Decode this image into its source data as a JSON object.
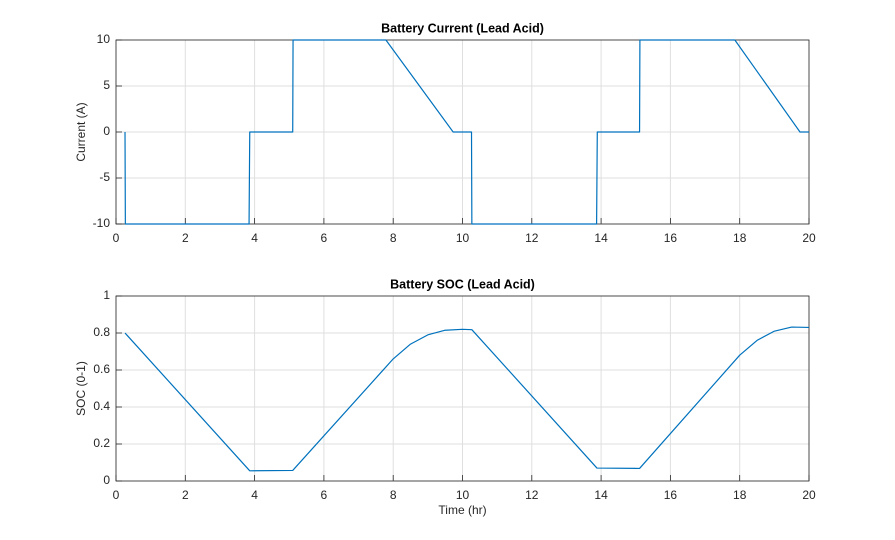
{
  "chart_data": [
    {
      "type": "line",
      "title": "Battery Current (Lead Acid)",
      "y_label": "Current (A)",
      "x": [
        0.26,
        0.27,
        3.84,
        3.86,
        5.1,
        5.11,
        7.79,
        9.73,
        10.26,
        10.27,
        13.87,
        13.89,
        15.11,
        15.12,
        17.86,
        19.74,
        20
      ],
      "values": [
        0,
        -10,
        -10,
        0,
        0,
        10,
        10,
        0,
        0,
        -10,
        -10,
        0,
        0,
        10,
        10,
        0,
        0
      ],
      "color": "#0072bd",
      "xlim": [
        0,
        20
      ],
      "xticks": [
        0,
        2,
        4,
        6,
        8,
        10,
        12,
        14,
        16,
        18,
        20
      ],
      "ylim": [
        -10,
        10
      ],
      "yticks": [
        -10,
        -5,
        0,
        5,
        10
      ],
      "grid": true
    },
    {
      "type": "line",
      "title": "Battery SOC (Lead Acid)",
      "y_label": "SOC (0-1)",
      "x_label": "Time (hr)",
      "x": [
        0.26,
        3.86,
        5.1,
        8,
        8.5,
        9,
        9.5,
        10,
        10.27,
        13.88,
        15.11,
        18,
        18.5,
        19,
        19.5,
        20
      ],
      "values": [
        0.8,
        0.055,
        0.057,
        0.66,
        0.74,
        0.79,
        0.815,
        0.82,
        0.818,
        0.07,
        0.068,
        0.68,
        0.76,
        0.81,
        0.832,
        0.83
      ],
      "color": "#0072bd",
      "xlim": [
        0,
        20
      ],
      "xticks": [
        0,
        2,
        4,
        6,
        8,
        10,
        12,
        14,
        16,
        18,
        20
      ],
      "ylim": [
        0,
        1
      ],
      "yticks": [
        0,
        0.2,
        0.4,
        0.6,
        0.8,
        1
      ],
      "grid": true
    }
  ]
}
